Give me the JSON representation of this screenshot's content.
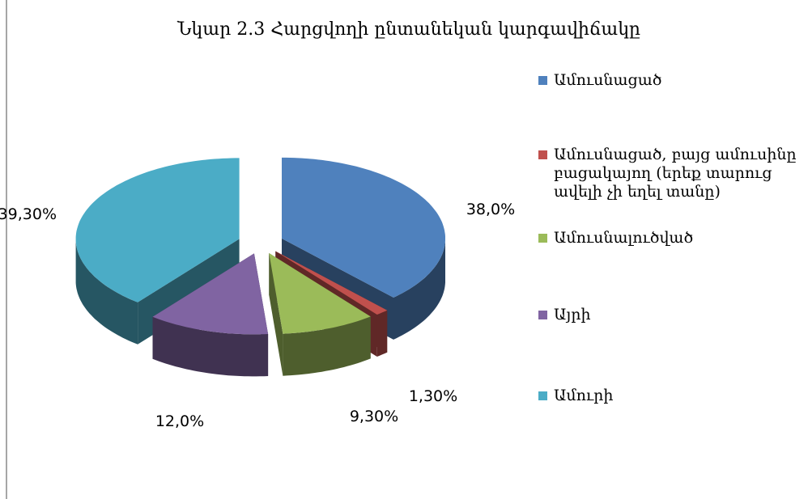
{
  "chart_data": {
    "type": "pie",
    "title": "Նկար 2.3 Հարցվողի ընտանեկան կարգավիճակը",
    "categories": [
      "Ամուսնացած",
      "Ամուսնացած, բայց ամուսինը բացակայող (երեք տարուց ավելի չի եղել տանը)",
      "Ամուսնալուծված",
      "Այրի",
      "Ամուրի"
    ],
    "values": [
      38.0,
      1.3,
      9.3,
      12.0,
      39.3
    ],
    "value_labels": [
      "38,0%",
      "1,30%",
      "9,30%",
      "12,0%",
      "39,30%"
    ],
    "colors": [
      "#4f81bd",
      "#c0504d",
      "#9bbb59",
      "#8064a2",
      "#4bacc6"
    ],
    "legend": "right"
  }
}
